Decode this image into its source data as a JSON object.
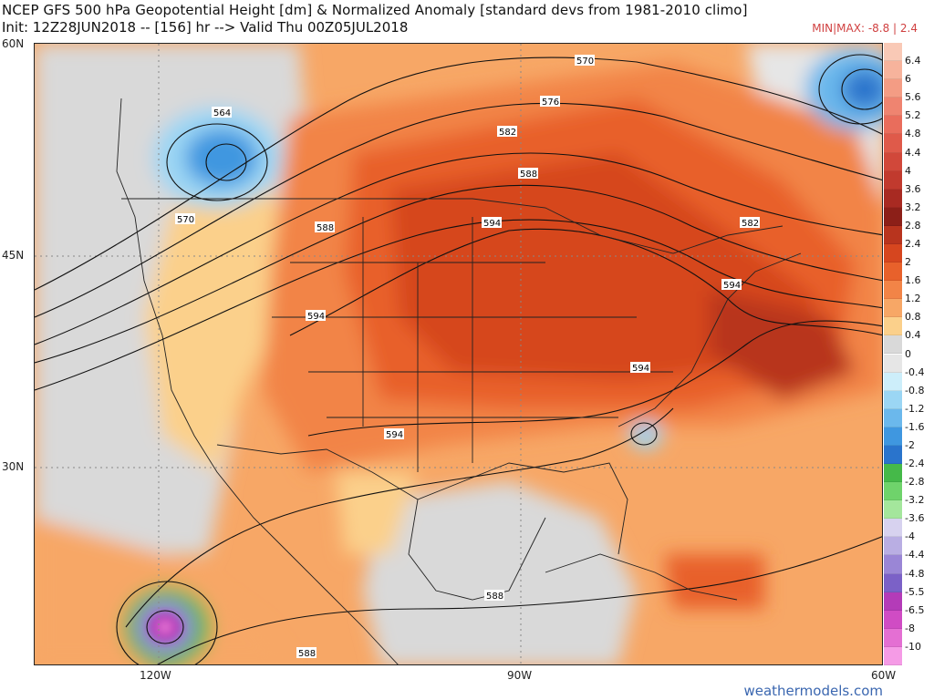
{
  "header": {
    "title": "NCEP GFS 500 hPa Geopotential Height [dm] & Normalized Anomaly [standard devs from 1981-2010 climo]",
    "subtitle": "Init: 12Z28JUN2018 -- [156] hr --> Valid Thu 00Z05JUL2018",
    "minmax": "MIN|MAX: -8.8 | 2.4"
  },
  "axes": {
    "lat_labels": [
      "60N",
      "45N",
      "30N"
    ],
    "lon_labels": [
      "120W",
      "90W",
      "60W"
    ]
  },
  "contour_labels": [
    "570",
    "576",
    "582",
    "588",
    "594",
    "564",
    "570",
    "588",
    "594",
    "582",
    "594",
    "594",
    "594",
    "588",
    "588"
  ],
  "legend": {
    "labels": [
      "6.4",
      "6",
      "5.6",
      "5.2",
      "4.8",
      "4.4",
      "4",
      "3.6",
      "3.2",
      "2.8",
      "2.4",
      "2",
      "1.6",
      "1.2",
      "0.8",
      "0.4",
      "0",
      "-0.4",
      "-0.8",
      "-1.2",
      "-1.6",
      "-2",
      "-2.4",
      "-2.8",
      "-3.2",
      "-3.6",
      "-4",
      "-4.4",
      "-4.8",
      "-5.5",
      "-6.5",
      "-8",
      "-10"
    ],
    "colors": [
      "#f9c9b6",
      "#f7b39c",
      "#f49c84",
      "#ef8470",
      "#e96d5c",
      "#df5a4a",
      "#d1483a",
      "#c13a2e",
      "#a82a22",
      "#8c1f18",
      "#b8341e",
      "#d6461f",
      "#e8612b",
      "#f28447",
      "#f7a766",
      "#fbd08b",
      "#d9d9d9",
      "#e6e6e6",
      "#cdeefa",
      "#9bd6f4",
      "#6bb8ec",
      "#3f97e0",
      "#2a74cc",
      "#45b949",
      "#6fd36b",
      "#a4e69c",
      "#d7d2ef",
      "#b9aee3",
      "#9a86d6",
      "#7b61c7",
      "#b43bb8",
      "#d04cc4",
      "#e46fd3",
      "#f59be6"
    ]
  },
  "credit": "weathermodels.com"
}
